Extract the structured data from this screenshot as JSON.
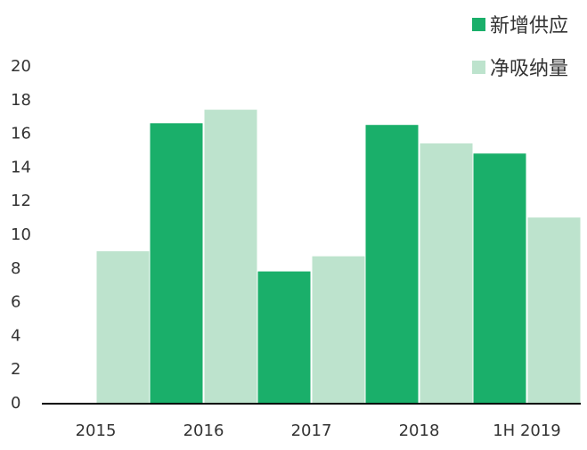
{
  "chart_data": {
    "type": "bar",
    "categories": [
      "2015",
      "2016",
      "2017",
      "2018",
      "1H 2019"
    ],
    "series": [
      {
        "name": "新增供应",
        "values": [
          0,
          16.6,
          7.8,
          16.5,
          14.8
        ],
        "color": "#1aaf6a"
      },
      {
        "name": "净吸纳量",
        "values": [
          9.0,
          17.4,
          8.7,
          15.4,
          11.0
        ],
        "color": "#bde3cd"
      }
    ],
    "ylim": [
      0,
      20
    ],
    "yticks": [
      0,
      2,
      4,
      6,
      8,
      10,
      12,
      14,
      16,
      18,
      20
    ],
    "grid": false,
    "legend_position": "top-right",
    "title": "",
    "xlabel": "",
    "ylabel": ""
  }
}
